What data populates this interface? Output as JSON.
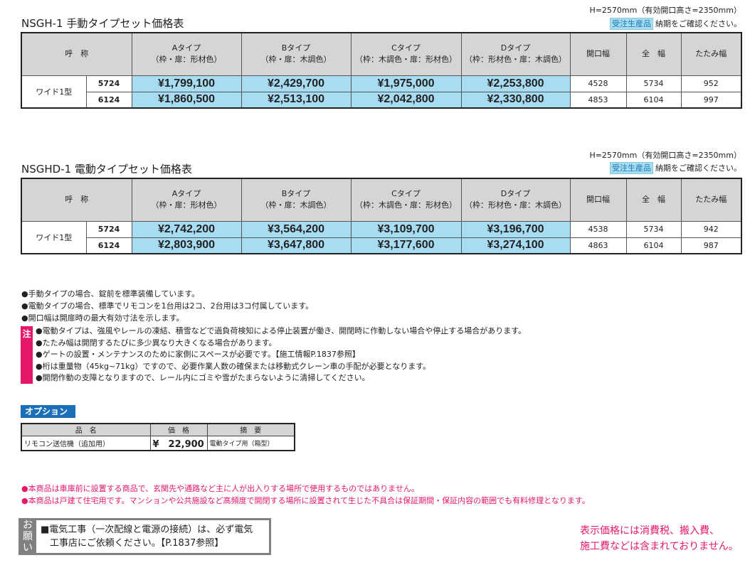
{
  "sections": [
    {
      "title": "NSGH-1 手動タイプセット価格表",
      "height_note": "H=2570mm（有効開口高さ=2350mm）",
      "order_badge": "受注生産品",
      "order_text": "納期をご確認ください。",
      "headers": {
        "name": "呼　称",
        "a": [
          "Aタイプ",
          "（枠・扉：形材色）"
        ],
        "b": [
          "Bタイプ",
          "（枠・扉：木調色）"
        ],
        "c": [
          "Cタイプ",
          "（枠：木調色・扉：形材色）"
        ],
        "d": [
          "Dタイプ",
          "（枠：形材色・扉：木調色）"
        ],
        "opening": "開口幅",
        "total": "全　幅",
        "folded": "たたみ幅"
      },
      "model": "ワイド1型",
      "rows": [
        {
          "code": "5724",
          "a": "¥1,799,100",
          "b": "¥2,429,700",
          "c": "¥1,975,000",
          "d": "¥2,253,800",
          "opening": "4528",
          "total": "5734",
          "folded": "952"
        },
        {
          "code": "6124",
          "a": "¥1,860,500",
          "b": "¥2,513,100",
          "c": "¥2,042,800",
          "d": "¥2,330,800",
          "opening": "4853",
          "total": "6104",
          "folded": "997"
        }
      ]
    },
    {
      "title": "NSGHD-1 電動タイプセット価格表",
      "height_note": "H=2570mm（有効開口高さ=2350mm）",
      "order_badge": "受注生産品",
      "order_text": "納期をご確認ください。",
      "headers": {
        "name": "呼　称",
        "a": [
          "Aタイプ",
          "（枠・扉：形材色）"
        ],
        "b": [
          "Bタイプ",
          "（枠・扉：木調色）"
        ],
        "c": [
          "Cタイプ",
          "（枠：木調色・扉：形材色）"
        ],
        "d": [
          "Dタイプ",
          "（枠：形材色・扉：木調色）"
        ],
        "opening": "開口幅",
        "total": "全　幅",
        "folded": "たたみ幅"
      },
      "model": "ワイド1型",
      "rows": [
        {
          "code": "5724",
          "a": "¥2,742,200",
          "b": "¥3,564,200",
          "c": "¥3,109,700",
          "d": "¥3,196,700",
          "opening": "4538",
          "total": "5734",
          "folded": "942"
        },
        {
          "code": "6124",
          "a": "¥2,803,900",
          "b": "¥3,647,800",
          "c": "¥3,177,600",
          "d": "¥3,274,100",
          "opening": "4863",
          "total": "6104",
          "folded": "987"
        }
      ]
    }
  ],
  "notes": [
    "●手動タイプの場合、錠前を標準装備しています。",
    "●電動タイプの場合、標準でリモコンを1台用は2コ、2台用は3コ付属しています。",
    "●開口幅は開扉時の最大有効寸法を示します。"
  ],
  "caution": {
    "label": "注",
    "items": [
      "●電動タイプは、強風やレールの凍結、積雪などで過負荷検知による停止装置が働き、開閉時に作動しない場合や停止する場合があります。",
      "●たたみ幅は開閉するたびに多少異なり大きくなる場合があります。",
      "●ゲートの設置・メンテナンスのために家側にスペースが必要です。【施工情報P.1837参照】",
      "●桁は重量物（45kg~71kg）ですので、必要作業人数の確保または移動式クレーン車の手配が必要となります。",
      "●開閉作動の支障となりますので、レール内にゴミや雪がたまらないように清掃してください。"
    ]
  },
  "option": {
    "label": "オプション",
    "headers": [
      "品　名",
      "価　格",
      "摘　要"
    ],
    "rows": [
      {
        "name": "リモコン送信機（追加用）",
        "price": "¥　22,900",
        "desc": "電動タイプ用（箱型）"
      }
    ]
  },
  "pink_notes": [
    "●本商品は車庫前に設置する商品で、玄関先や通路など主に人が出入りする場所で使用するものではありません。",
    "●本商品は戸建て住宅用です。マンションや公共施設など高頻度で開閉する場所に設置されて生じた不具合は保証期間・保証内容の範囲でも有料修理となります。"
  ],
  "request": {
    "label": "お願い",
    "lines": [
      "■電気工事（一次配線と電源の接続）は、必ず電気",
      "　工事店にご依頼ください。【P.1837参照】"
    ]
  },
  "tax_note": [
    "表示価格には消費税、搬入費、",
    "施工費などは含まれておりません。"
  ],
  "colors": {
    "price_bg": "#a8dcf3",
    "header_bg": "#d5d5d5",
    "accent_pink": "#e4176b",
    "option_blue": "#1a6fb8"
  }
}
